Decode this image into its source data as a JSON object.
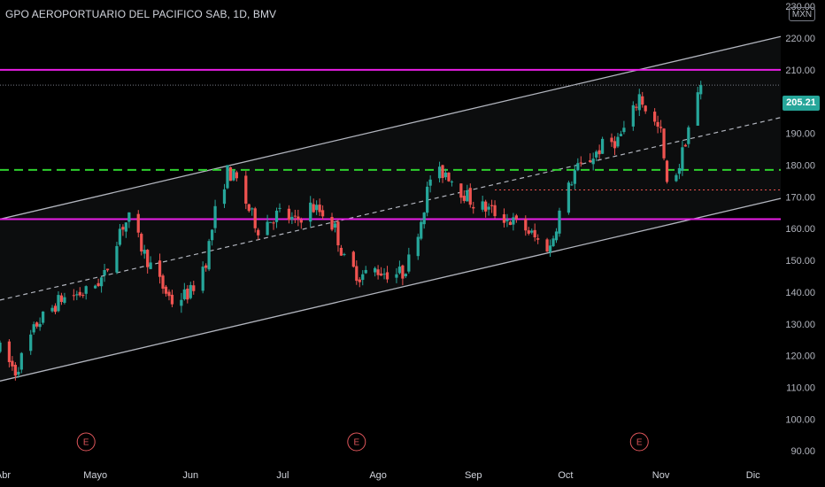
{
  "header": {
    "title": "GPO AEROPORTUARIO DEL PACIFICO SAB, 1D, BMV",
    "currency": "MXN",
    "last_price": "205.21"
  },
  "colors": {
    "background": "#000000",
    "up_candle": "#26a69a",
    "down_candle": "#ef5350",
    "channel": "#b2b5be",
    "magenta_levels": "#e91ee6",
    "green_level": "#2ed12e",
    "red_level": "#ef5350",
    "price_tag": "#26a69a"
  },
  "events": [
    {
      "label": "E",
      "x": "2023-04-28"
    },
    {
      "label": "E",
      "x": "2023-07-25"
    },
    {
      "label": "E",
      "x": "2023-10-25"
    }
  ],
  "chart_data": {
    "type": "candlestick",
    "title": "GPO AEROPORTUARIO DEL PACIFICO SAB, 1D, BMV",
    "xlabel": "",
    "ylabel": "",
    "x_range": [
      "2023-03-31",
      "2023-12-10"
    ],
    "ylim": [
      87,
      232
    ],
    "y_ticks": [
      "230.00",
      "220.00",
      "210.00",
      "200.00",
      "190.00",
      "180.00",
      "170.00",
      "160.00",
      "150.00",
      "140.00",
      "130.00",
      "120.00",
      "110.00",
      "100.00",
      "90.00"
    ],
    "x_ticks": [
      {
        "label": "Abr",
        "x": "2023-04-01"
      },
      {
        "label": "Mayo",
        "x": "2023-05-01"
      },
      {
        "label": "Jun",
        "x": "2023-06-01"
      },
      {
        "label": "Jul",
        "x": "2023-07-01"
      },
      {
        "label": "Ago",
        "x": "2023-08-01"
      },
      {
        "label": "Sep",
        "x": "2023-09-01"
      },
      {
        "label": "Oct",
        "x": "2023-10-01"
      },
      {
        "label": "Nov",
        "x": "2023-11-01"
      },
      {
        "label": "Dic",
        "x": "2023-12-01"
      }
    ],
    "grid": false,
    "last_price": 205.21,
    "horizontal_levels": [
      {
        "value": 210,
        "color": "#e91ee6",
        "style": "solid"
      },
      {
        "value": 163,
        "color": "#e91ee6",
        "style": "solid"
      },
      {
        "value": 178.5,
        "color": "#2ed12e",
        "style": "dashed"
      },
      {
        "value": 172.2,
        "color": "#ef5350",
        "style": "dotted",
        "from": "2023-09-08"
      }
    ],
    "channel": {
      "upper": [
        [
          "2023-03-31",
          163
        ],
        [
          "2023-12-10",
          220.5
        ]
      ],
      "middle": [
        [
          "2023-03-31",
          137.5
        ],
        [
          "2023-12-10",
          195
        ]
      ],
      "lower": [
        [
          "2023-03-31",
          112
        ],
        [
          "2023-12-10",
          169.5
        ]
      ]
    },
    "anchors": [
      [
        "2023-03-31",
        122
      ],
      [
        "2023-04-05",
        115
      ],
      [
        "2023-04-12",
        130
      ],
      [
        "2023-04-20",
        138
      ],
      [
        "2023-04-28",
        140
      ],
      [
        "2023-05-04",
        145
      ],
      [
        "2023-05-09",
        160
      ],
      [
        "2023-05-12",
        163
      ],
      [
        "2023-05-17",
        152
      ],
      [
        "2023-05-22",
        143
      ],
      [
        "2023-05-26",
        137
      ],
      [
        "2023-06-01",
        140
      ],
      [
        "2023-06-06",
        150
      ],
      [
        "2023-06-09",
        165
      ],
      [
        "2023-06-13",
        178
      ],
      [
        "2023-06-16",
        175
      ],
      [
        "2023-06-20",
        166
      ],
      [
        "2023-06-23",
        160
      ],
      [
        "2023-06-27",
        163
      ],
      [
        "2023-06-30",
        165
      ],
      [
        "2023-07-05",
        162
      ],
      [
        "2023-07-10",
        167
      ],
      [
        "2023-07-14",
        165
      ],
      [
        "2023-07-18",
        160
      ],
      [
        "2023-07-21",
        150
      ],
      [
        "2023-07-26",
        145
      ],
      [
        "2023-07-31",
        147
      ],
      [
        "2023-08-04",
        146
      ],
      [
        "2023-08-09",
        146
      ],
      [
        "2023-08-11",
        150
      ],
      [
        "2023-08-15",
        163
      ],
      [
        "2023-08-18",
        176
      ],
      [
        "2023-08-23",
        178
      ],
      [
        "2023-08-28",
        172
      ],
      [
        "2023-09-01",
        168
      ],
      [
        "2023-09-06",
        166
      ],
      [
        "2023-09-12",
        163
      ],
      [
        "2023-09-18",
        160
      ],
      [
        "2023-09-22",
        156
      ],
      [
        "2023-09-26",
        154
      ],
      [
        "2023-09-29",
        165
      ],
      [
        "2023-10-04",
        178
      ],
      [
        "2023-10-09",
        182
      ],
      [
        "2023-10-13",
        186
      ],
      [
        "2023-10-18",
        188
      ],
      [
        "2023-10-22",
        194
      ],
      [
        "2023-10-25",
        202
      ],
      [
        "2023-10-28",
        196
      ],
      [
        "2023-11-01",
        190
      ],
      [
        "2023-11-03",
        173
      ],
      [
        "2023-11-07",
        180
      ],
      [
        "2023-11-10",
        192
      ],
      [
        "2023-11-14",
        205.21
      ]
    ]
  }
}
